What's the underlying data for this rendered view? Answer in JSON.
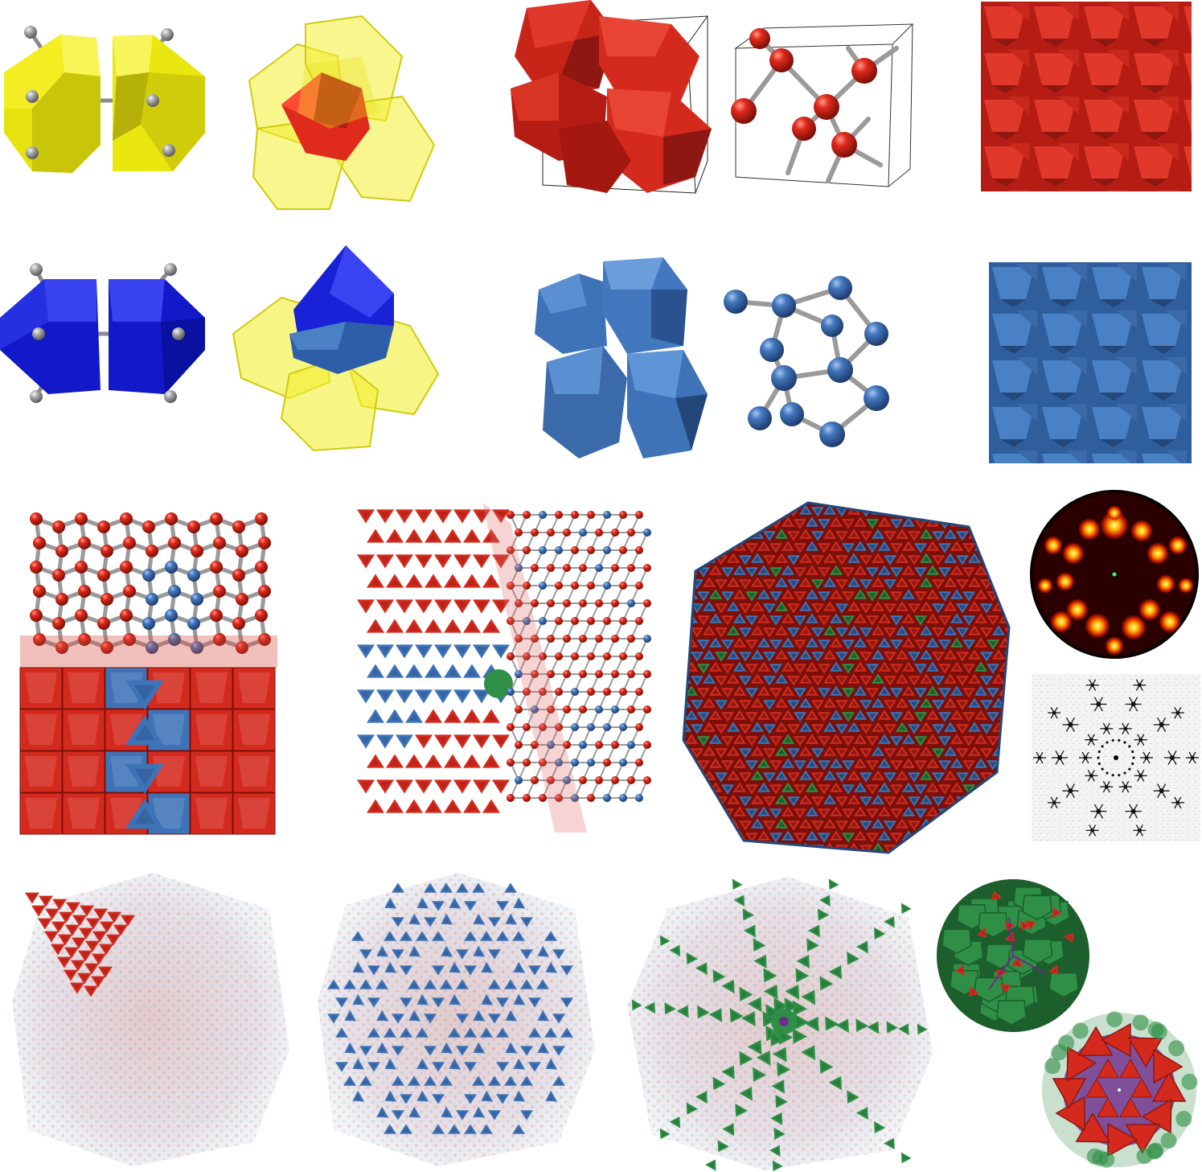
{
  "figure": {
    "colors": {
      "red": "#d42a1e",
      "red_dark": "#8e1711",
      "blue": "#3f73b8",
      "blue_dark": "#24477a",
      "royal_blue": "#1a22d8",
      "yellow": "#f2ef1a",
      "yellow_transparent": "#f4f05a",
      "green": "#2f8f46",
      "green_dark": "#1c5e2c",
      "purple": "#6b2c8c",
      "bond_gray": "#9a9a9a",
      "background": "#ffffff"
    },
    "rows": [
      {
        "name": "red-row",
        "panels": [
          "yellow-pair-with-bonds-icon",
          "red-core-in-yellow-cluster-icon",
          "red-polyhedra-in-unit-cell-icon",
          "red-ball-and-stick-unit-cell-icon",
          "red-tiled-surface-icon"
        ]
      },
      {
        "name": "blue-row",
        "panels": [
          "blue-pair-with-bonds-icon",
          "blue-core-in-yellow-cluster-icon",
          "blue-polyhedra-stack-icon",
          "blue-ball-and-stick-network-icon",
          "blue-tiled-surface-icon"
        ]
      },
      {
        "name": "interface-row",
        "panels": [
          "red-blue-interface-slab-icon",
          "twinned-cluster-cutaway-icon",
          "icosahedral-crystallite-icon",
          "diffraction-pattern-hot-icon",
          "diffraction-pattern-gray-icon"
        ]
      },
      {
        "name": "substructure-row",
        "panels": [
          "red-wedge-in-transparent-cluster-icon",
          "blue-domains-in-transparent-cluster-icon",
          "green-star-axes-in-transparent-cluster-icon",
          "green-red-core-ball-icon",
          "red-purple-core-ball-icon"
        ]
      }
    ]
  }
}
